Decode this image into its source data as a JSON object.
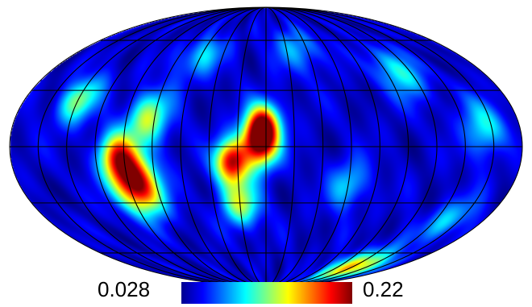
{
  "chart_data": {
    "type": "heatmap",
    "projection": "mollweide",
    "title": "",
    "colorbar": {
      "min": 0.028,
      "max": 0.22,
      "min_label": "0.028",
      "max_label": "0.22",
      "colormap": "jet",
      "orientation": "horizontal",
      "placement": "bottom"
    },
    "graticule": {
      "meridian_step_deg": 20,
      "parallel_lats_deg": [
        -60,
        -30,
        0,
        30,
        60
      ],
      "color": "#000000"
    },
    "hotspots": [
      {
        "lon": -5,
        "lat": 2,
        "value": 0.2,
        "sigma_deg": 9
      },
      {
        "lon": -2,
        "lat": 12,
        "value": 0.16,
        "sigma_deg": 8
      },
      {
        "lon": -25,
        "lat": -8,
        "value": 0.19,
        "sigma_deg": 8
      },
      {
        "lon": -20,
        "lat": -30,
        "value": 0.12,
        "sigma_deg": 9
      },
      {
        "lon": -95,
        "lat": -20,
        "value": 0.21,
        "sigma_deg": 11
      },
      {
        "lon": -105,
        "lat": -5,
        "value": 0.15,
        "sigma_deg": 9
      },
      {
        "lon": -85,
        "lat": 15,
        "value": 0.12,
        "sigma_deg": 10
      },
      {
        "lon": -140,
        "lat": 25,
        "value": 0.11,
        "sigma_deg": 9
      },
      {
        "lon": 120,
        "lat": -70,
        "value": 0.15,
        "sigma_deg": 8
      },
      {
        "lon": 155,
        "lat": 10,
        "value": 0.09,
        "sigma_deg": 10
      },
      {
        "lon": 110,
        "lat": 40,
        "value": 0.09,
        "sigma_deg": 10
      },
      {
        "lon": 60,
        "lat": -20,
        "value": 0.08,
        "sigma_deg": 9
      },
      {
        "lon": -60,
        "lat": 50,
        "value": 0.08,
        "sigma_deg": 9
      },
      {
        "lon": 30,
        "lat": 55,
        "value": 0.07,
        "sigma_deg": 10
      },
      {
        "lon": 150,
        "lat": -40,
        "value": 0.08,
        "sigma_deg": 9
      }
    ]
  }
}
